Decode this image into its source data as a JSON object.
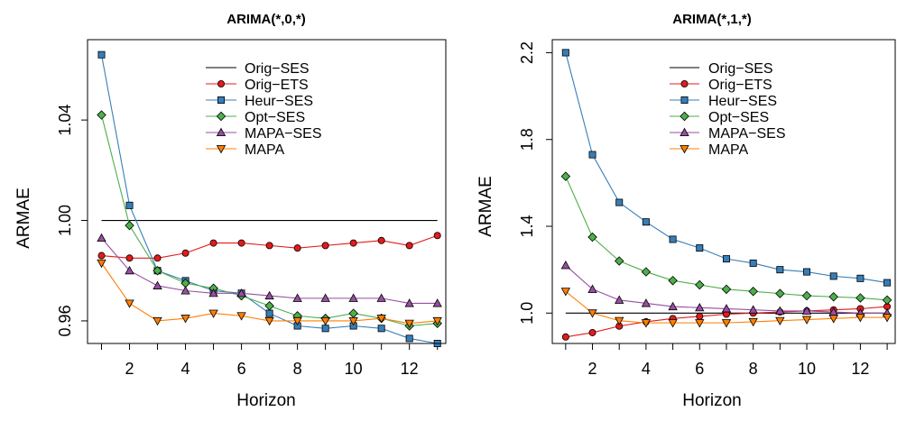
{
  "chart_data": [
    {
      "type": "line",
      "title": "ARIMA(*,0,*)",
      "xlabel": "Horizon",
      "ylabel": "ARMAE",
      "xlim": [
        0.5,
        13.3
      ],
      "ylim": [
        0.951,
        1.072
      ],
      "x": [
        1,
        2,
        3,
        4,
        5,
        6,
        7,
        8,
        9,
        10,
        11,
        12,
        13
      ],
      "x_ticks": [
        2,
        4,
        6,
        8,
        10,
        12
      ],
      "y_ticks": [
        0.96,
        1.0,
        1.04
      ],
      "y_tick_labels": [
        "0.96",
        "1.00",
        "1.04"
      ],
      "legend": "top-right",
      "series": [
        {
          "name": "Orig−SES",
          "color": "#000000",
          "marker": "none",
          "values": [
            1,
            1,
            1,
            1,
            1,
            1,
            1,
            1,
            1,
            1,
            1,
            1,
            1
          ]
        },
        {
          "name": "Orig−ETS",
          "color": "#e41a1c",
          "marker": "circle",
          "values": [
            0.986,
            0.985,
            0.985,
            0.987,
            0.991,
            0.991,
            0.99,
            0.989,
            0.99,
            0.991,
            0.992,
            0.99,
            0.994
          ]
        },
        {
          "name": "Heur−SES",
          "color": "#377eb8",
          "marker": "square",
          "values": [
            1.066,
            1.006,
            0.98,
            0.976,
            0.972,
            0.971,
            0.963,
            0.958,
            0.957,
            0.958,
            0.957,
            0.953,
            0.951
          ]
        },
        {
          "name": "Opt−SES",
          "color": "#4daf4a",
          "marker": "diamond",
          "values": [
            1.042,
            0.998,
            0.98,
            0.975,
            0.973,
            0.97,
            0.966,
            0.962,
            0.961,
            0.963,
            0.961,
            0.958,
            0.959
          ]
        },
        {
          "name": "MAPA−SES",
          "color": "#984ea3",
          "marker": "triangle-up",
          "values": [
            0.993,
            0.98,
            0.974,
            0.972,
            0.971,
            0.971,
            0.97,
            0.969,
            0.969,
            0.969,
            0.969,
            0.967,
            0.967
          ]
        },
        {
          "name": "MAPA",
          "color": "#ff7f00",
          "marker": "triangle-down",
          "values": [
            0.983,
            0.967,
            0.96,
            0.961,
            0.963,
            0.962,
            0.96,
            0.96,
            0.96,
            0.96,
            0.961,
            0.959,
            0.96
          ]
        }
      ]
    },
    {
      "type": "line",
      "title": "ARIMA(*,1,*)",
      "xlabel": "Horizon",
      "ylabel": "ARMAE",
      "xlim": [
        0.5,
        13.3
      ],
      "ylim": [
        0.86,
        2.26
      ],
      "x": [
        1,
        2,
        3,
        4,
        5,
        6,
        7,
        8,
        9,
        10,
        11,
        12,
        13
      ],
      "x_ticks": [
        2,
        4,
        6,
        8,
        10,
        12
      ],
      "y_ticks": [
        1.0,
        1.4,
        1.8,
        2.2
      ],
      "y_tick_labels": [
        "1.0",
        "1.4",
        "1.8",
        "2.2"
      ],
      "legend": "top-right",
      "series": [
        {
          "name": "Orig−SES",
          "color": "#000000",
          "marker": "none",
          "values": [
            1,
            1,
            1,
            1,
            1,
            1,
            1,
            1,
            1,
            1,
            1,
            1,
            1
          ]
        },
        {
          "name": "Orig−ETS",
          "color": "#e41a1c",
          "marker": "circle",
          "values": [
            0.89,
            0.91,
            0.94,
            0.96,
            0.975,
            0.985,
            0.995,
            1.0,
            1.005,
            1.01,
            1.015,
            1.02,
            1.03
          ]
        },
        {
          "name": "Heur−SES",
          "color": "#377eb8",
          "marker": "square",
          "values": [
            2.2,
            1.73,
            1.51,
            1.42,
            1.34,
            1.3,
            1.25,
            1.23,
            1.2,
            1.19,
            1.17,
            1.16,
            1.14
          ]
        },
        {
          "name": "Opt−SES",
          "color": "#4daf4a",
          "marker": "diamond",
          "values": [
            1.63,
            1.35,
            1.24,
            1.19,
            1.15,
            1.13,
            1.11,
            1.1,
            1.09,
            1.08,
            1.075,
            1.07,
            1.06
          ]
        },
        {
          "name": "MAPA−SES",
          "color": "#984ea3",
          "marker": "triangle-up",
          "values": [
            1.22,
            1.11,
            1.06,
            1.045,
            1.03,
            1.025,
            1.02,
            1.015,
            1.01,
            1.01,
            1.005,
            1.0,
            1.0
          ]
        },
        {
          "name": "MAPA",
          "color": "#ff7f00",
          "marker": "triangle-down",
          "values": [
            1.1,
            1.0,
            0.965,
            0.955,
            0.955,
            0.955,
            0.955,
            0.96,
            0.965,
            0.97,
            0.975,
            0.98,
            0.98
          ]
        }
      ]
    }
  ]
}
